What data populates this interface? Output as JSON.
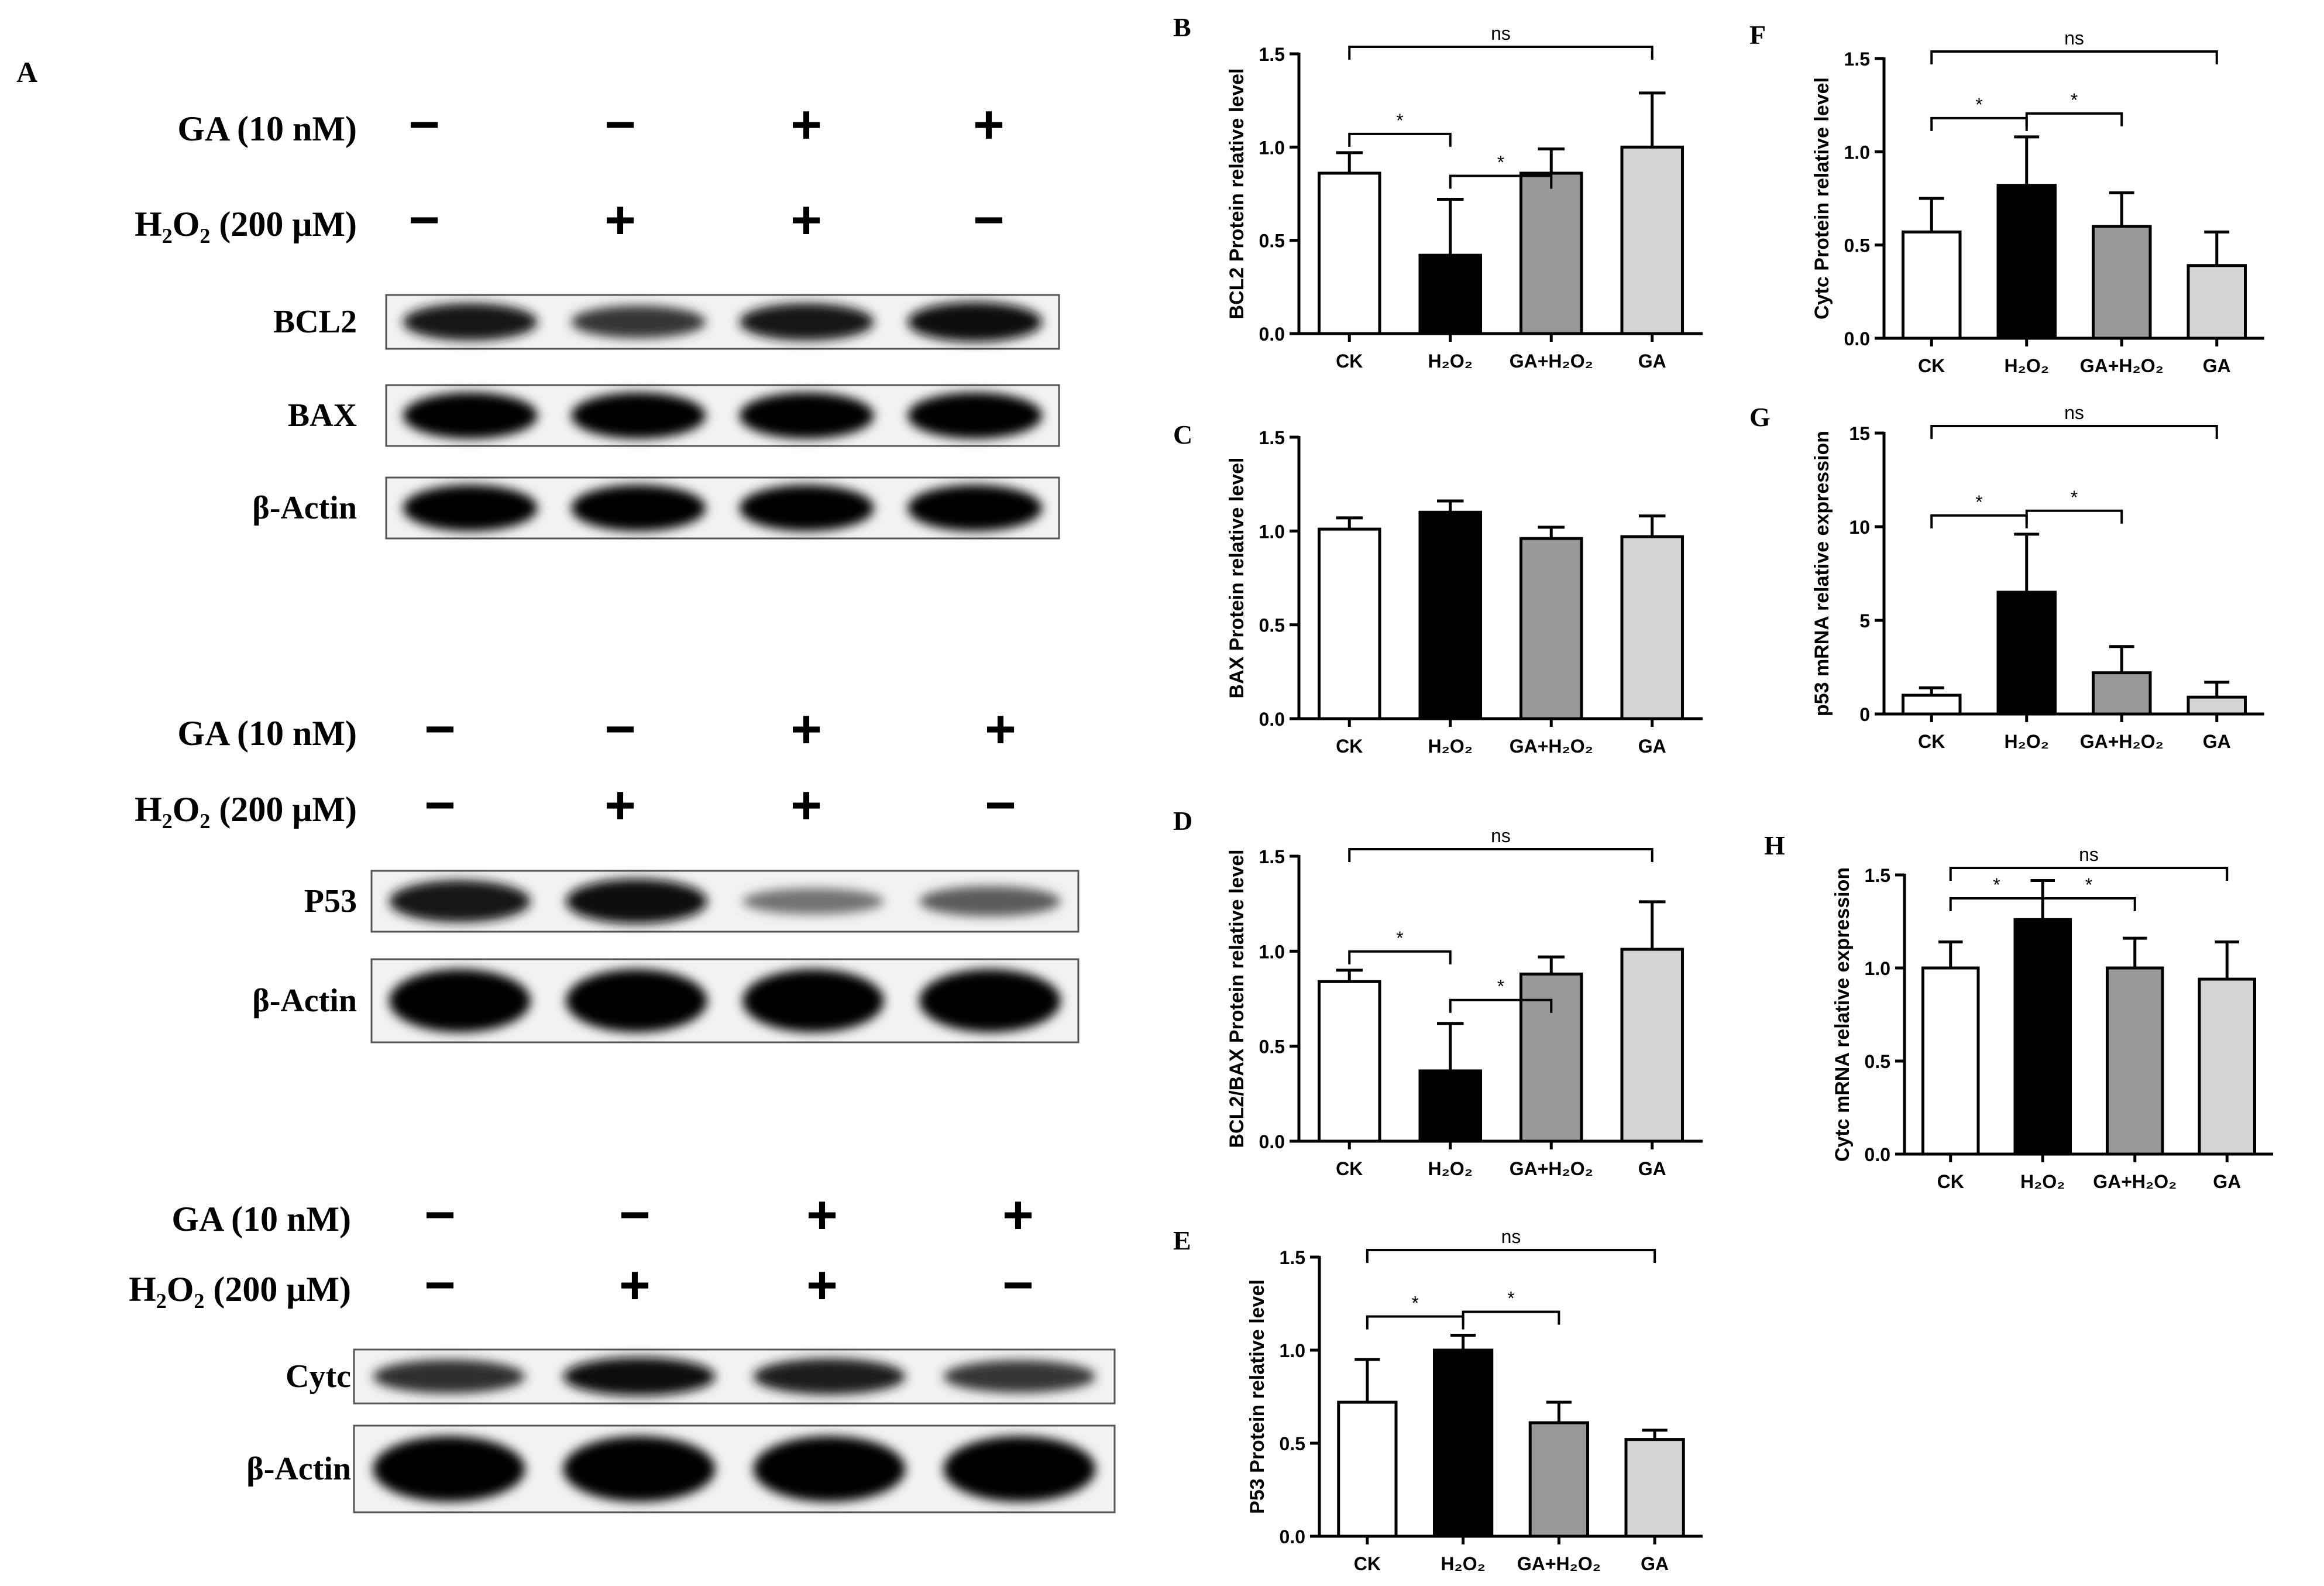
{
  "panel_a": {
    "letter": "A",
    "blocks": [
      {
        "treatments": [
          {
            "label": "GA (10 nM)",
            "signs": [
              "−",
              "−",
              "+",
              "+"
            ]
          },
          {
            "label": "H₂O₂ (200 μM)",
            "signs": [
              "−",
              "+",
              "+",
              "−"
            ]
          }
        ],
        "blots": [
          {
            "label": "BCL2",
            "intensity": [
              0.85,
              0.65,
              0.85,
              0.95
            ]
          },
          {
            "label": "BAX",
            "intensity": [
              1.0,
              1.0,
              1.0,
              1.0
            ]
          },
          {
            "label": "β-Actin",
            "intensity": [
              1.0,
              1.0,
              1.0,
              1.0
            ]
          }
        ]
      },
      {
        "treatments": [
          {
            "label": "GA (10 nM)",
            "signs": [
              "−",
              "−",
              "+",
              "+"
            ]
          },
          {
            "label": "H₂O₂ (200 μM)",
            "signs": [
              "−",
              "+",
              "+",
              "−"
            ]
          }
        ],
        "blots": [
          {
            "label": "P53",
            "intensity": [
              0.85,
              0.95,
              0.25,
              0.4
            ]
          },
          {
            "label": "β-Actin",
            "intensity": [
              1.0,
              1.0,
              1.0,
              1.0
            ]
          }
        ]
      },
      {
        "treatments": [
          {
            "label": "GA (10 nM)",
            "signs": [
              "−",
              "−",
              "+",
              "+"
            ]
          },
          {
            "label": "H₂O₂ (200 μM)",
            "signs": [
              "−",
              "+",
              "+",
              "−"
            ]
          }
        ],
        "blots": [
          {
            "label": "Cytc",
            "intensity": [
              0.7,
              0.9,
              0.8,
              0.65
            ]
          },
          {
            "label": "β-Actin",
            "intensity": [
              1.0,
              1.0,
              1.0,
              1.0
            ]
          }
        ]
      }
    ]
  },
  "colors": {
    "CK": "#ffffff",
    "H2O2": "#000000",
    "GA+H2O2": "#999999",
    "GA": "#d4d4d4"
  },
  "chart_data": [
    {
      "id": "B",
      "letter": "B",
      "type": "bar",
      "categories": [
        "CK",
        "H₂O₂",
        "GA+H₂O₂",
        "GA"
      ],
      "values": [
        0.86,
        0.42,
        0.86,
        1.0
      ],
      "errors": [
        0.11,
        0.3,
        0.13,
        0.29
      ],
      "ylabel": "BCL2 Protein relative level",
      "ylim": [
        0,
        1.5
      ],
      "yticks": [
        "0.0",
        "0.5",
        "1.0",
        "1.5"
      ],
      "sig": [
        {
          "from": 0,
          "to": 1,
          "label": "*"
        },
        {
          "from": 1,
          "to": 2,
          "label": "*"
        },
        {
          "from": 0,
          "to": 3,
          "label": "ns"
        }
      ]
    },
    {
      "id": "C",
      "letter": "C",
      "type": "bar",
      "categories": [
        "CK",
        "H₂O₂",
        "GA+H₂O₂",
        "GA"
      ],
      "values": [
        1.01,
        1.1,
        0.96,
        0.97
      ],
      "errors": [
        0.06,
        0.06,
        0.06,
        0.11
      ],
      "ylabel": "BAX Protein relative level",
      "ylim": [
        0,
        1.5
      ],
      "yticks": [
        "0.0",
        "0.5",
        "1.0",
        "1.5"
      ],
      "sig": []
    },
    {
      "id": "D",
      "letter": "D",
      "type": "bar",
      "categories": [
        "CK",
        "H₂O₂",
        "GA+H₂O₂",
        "GA"
      ],
      "values": [
        0.84,
        0.37,
        0.88,
        1.01
      ],
      "errors": [
        0.06,
        0.25,
        0.09,
        0.25
      ],
      "ylabel": "BCL2/BAX Protein relative level",
      "ylim": [
        0,
        1.5
      ],
      "yticks": [
        "0.0",
        "0.5",
        "1.0",
        "1.5"
      ],
      "sig": [
        {
          "from": 0,
          "to": 1,
          "label": "*"
        },
        {
          "from": 1,
          "to": 2,
          "label": "*"
        },
        {
          "from": 0,
          "to": 3,
          "label": "ns"
        }
      ]
    },
    {
      "id": "E",
      "letter": "E",
      "type": "bar",
      "categories": [
        "CK",
        "H₂O₂",
        "GA+H₂O₂",
        "GA"
      ],
      "values": [
        0.72,
        1.0,
        0.61,
        0.52
      ],
      "errors": [
        0.23,
        0.08,
        0.11,
        0.05
      ],
      "ylabel": "P53 Protein relative level",
      "ylim": [
        0,
        1.5
      ],
      "yticks": [
        "0.0",
        "0.5",
        "1.0",
        "1.5"
      ],
      "sig": [
        {
          "from": 0,
          "to": 1,
          "label": "*"
        },
        {
          "from": 1,
          "to": 2,
          "label": "*"
        },
        {
          "from": 0,
          "to": 3,
          "label": "ns"
        }
      ]
    },
    {
      "id": "F",
      "letter": "F",
      "type": "bar",
      "categories": [
        "CK",
        "H₂O₂",
        "GA+H₂O₂",
        "GA"
      ],
      "values": [
        0.57,
        0.82,
        0.6,
        0.39
      ],
      "errors": [
        0.18,
        0.26,
        0.18,
        0.18
      ],
      "ylabel": "Cytc Protein relative level",
      "ylim": [
        0,
        1.5
      ],
      "yticks": [
        "0.0",
        "0.5",
        "1.0",
        "1.5"
      ],
      "sig": [
        {
          "from": 0,
          "to": 1,
          "label": "*"
        },
        {
          "from": 1,
          "to": 2,
          "label": "*"
        },
        {
          "from": 0,
          "to": 3,
          "label": "ns"
        }
      ]
    },
    {
      "id": "G",
      "letter": "G",
      "type": "bar",
      "categories": [
        "CK",
        "H₂O₂",
        "GA+H₂O₂",
        "GA"
      ],
      "values": [
        1.0,
        6.5,
        2.2,
        0.9
      ],
      "errors": [
        0.4,
        3.1,
        1.4,
        0.8
      ],
      "ylabel": "p53 mRNA relative expression",
      "ylim": [
        0,
        15
      ],
      "yticks": [
        "0",
        "5",
        "10",
        "15"
      ],
      "sig": [
        {
          "from": 0,
          "to": 1,
          "label": "*"
        },
        {
          "from": 1,
          "to": 2,
          "label": "*"
        },
        {
          "from": 0,
          "to": 3,
          "label": "ns"
        }
      ]
    },
    {
      "id": "H",
      "letter": "H",
      "type": "bar",
      "categories": [
        "CK",
        "H₂O₂",
        "GA+H₂O₂",
        "GA"
      ],
      "values": [
        1.0,
        1.26,
        1.0,
        0.94
      ],
      "errors": [
        0.14,
        0.21,
        0.16,
        0.2
      ],
      "ylabel": "Cytc mRNA relative expression",
      "ylim": [
        0,
        1.5
      ],
      "yticks": [
        "0.0",
        "0.5",
        "1.0",
        "1.5"
      ],
      "sig": [
        {
          "from": 0,
          "to": 1,
          "label": "*"
        },
        {
          "from": 1,
          "to": 2,
          "label": "*"
        },
        {
          "from": 0,
          "to": 3,
          "label": "ns"
        }
      ]
    }
  ]
}
